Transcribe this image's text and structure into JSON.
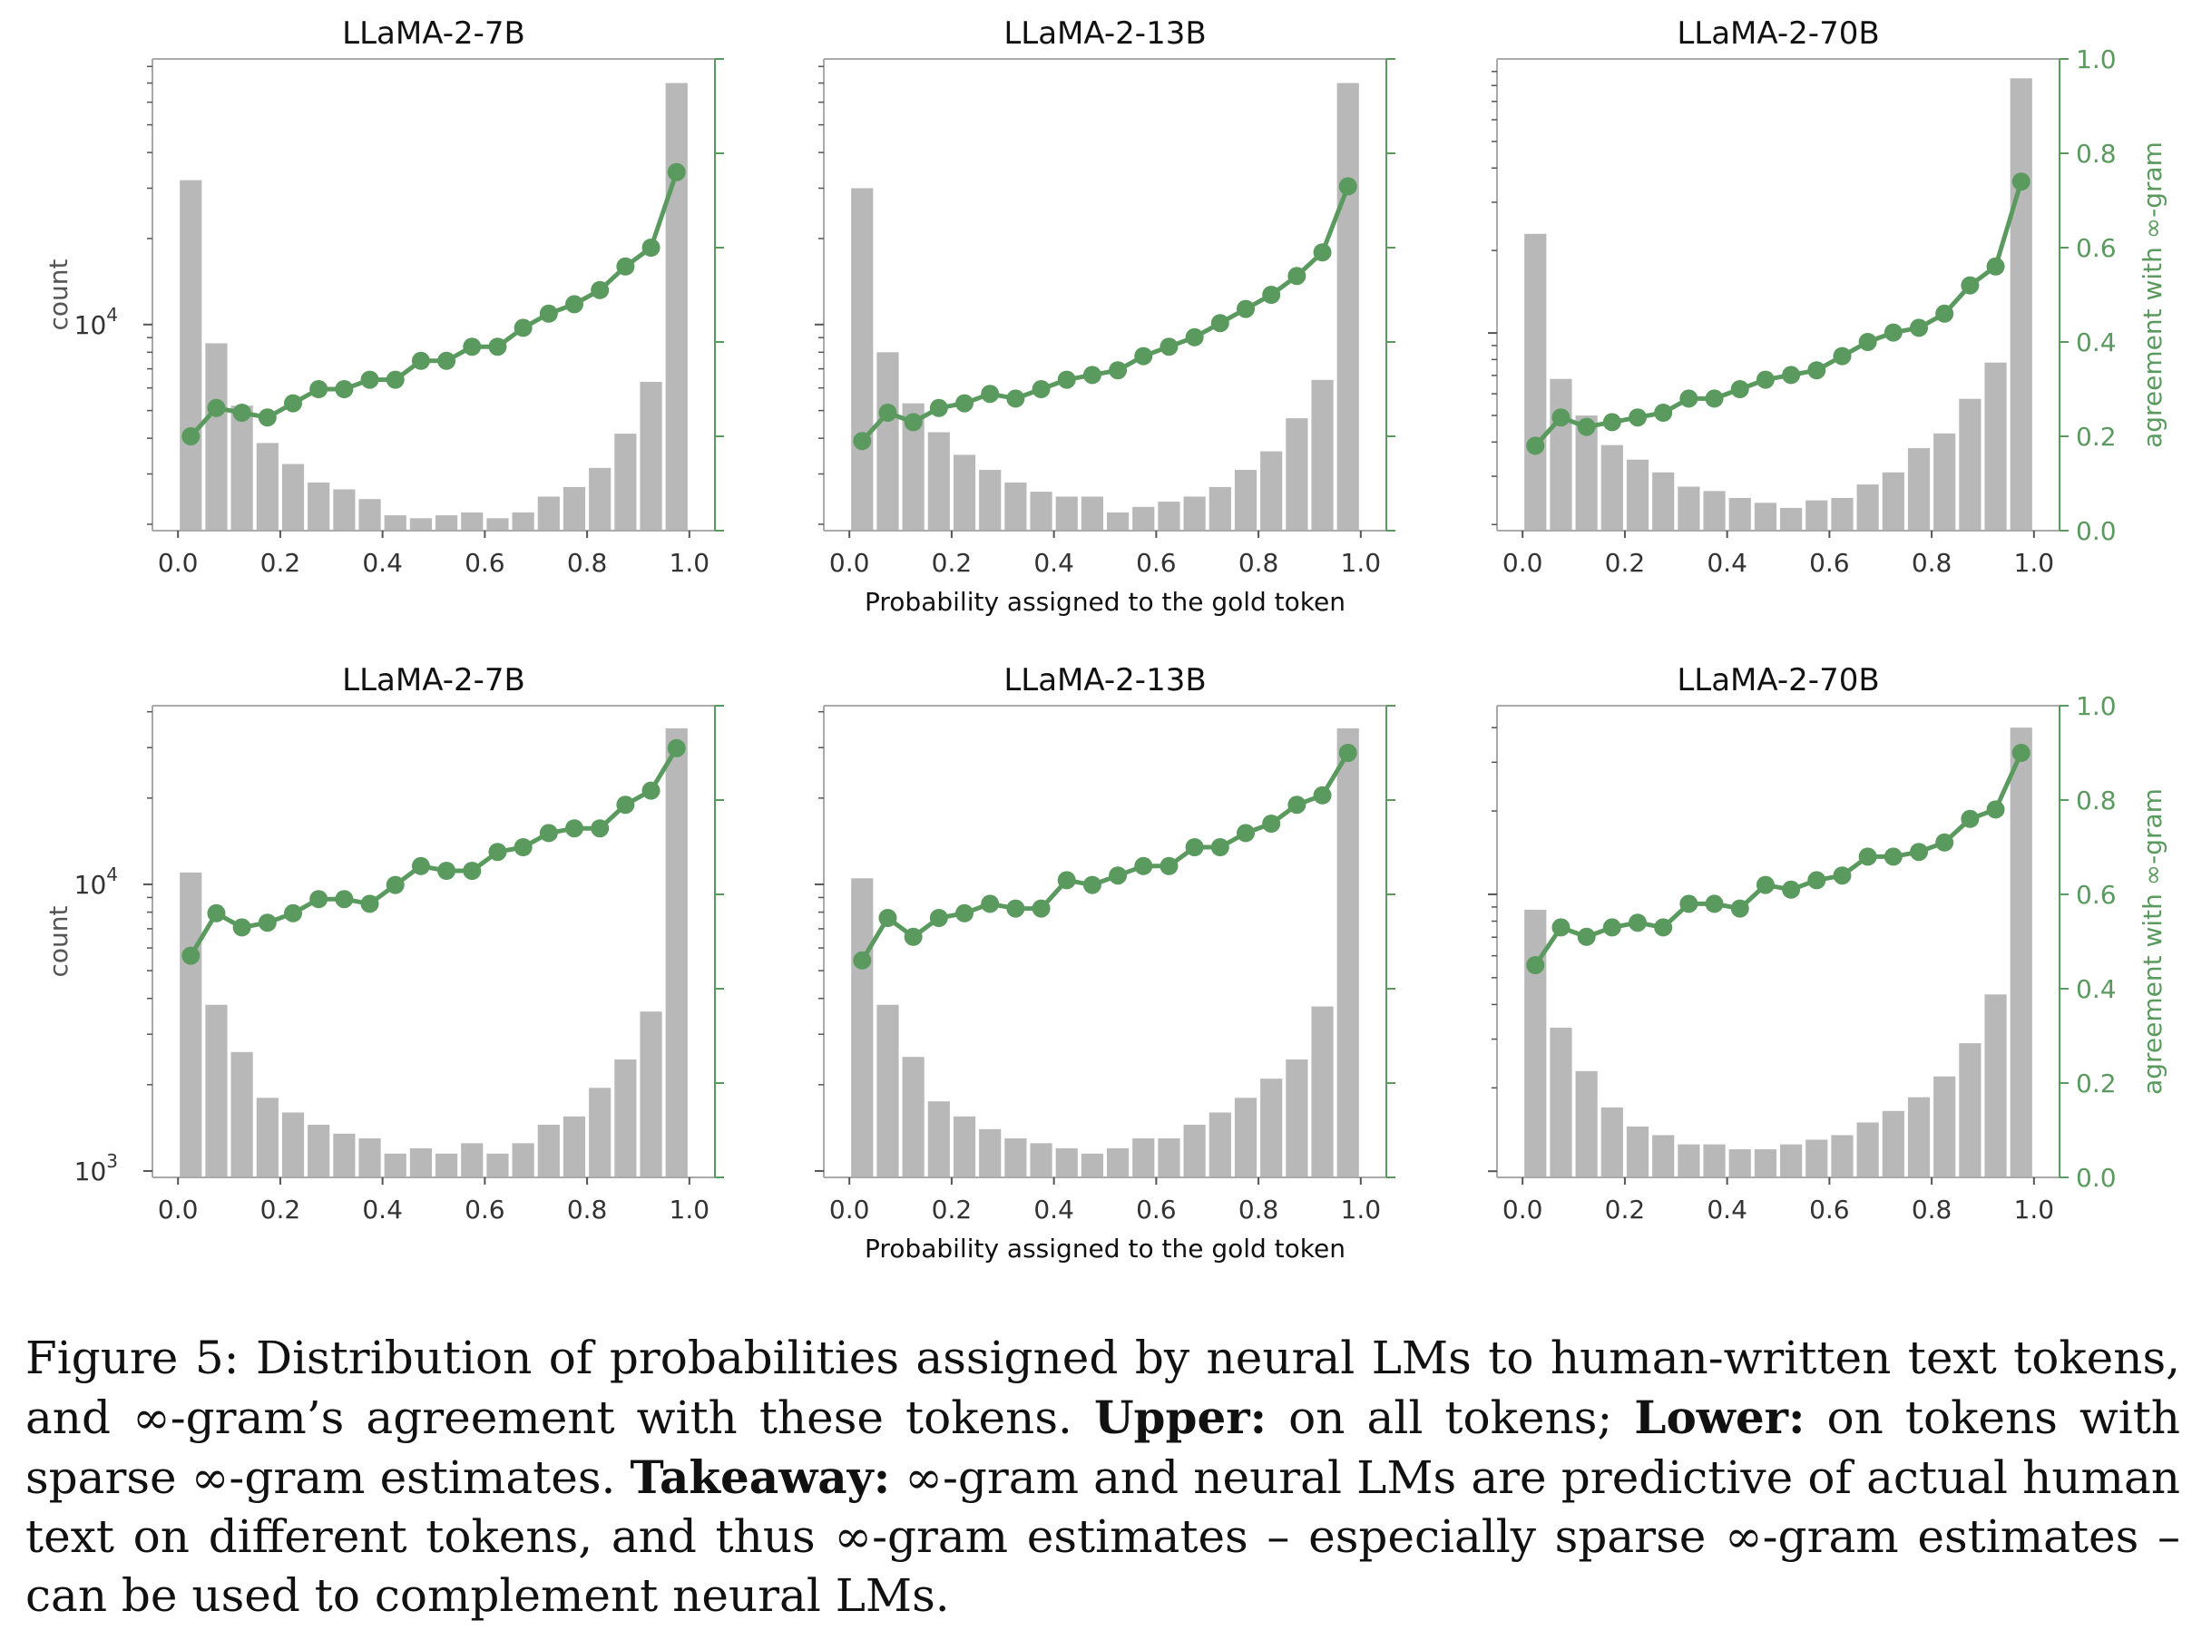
{
  "figure": {
    "xlabel": "Probability assigned to the gold token",
    "ylabel_left": "count",
    "ylabel_right": "agreement with ∞-gram",
    "x_ticks": [
      "0.0",
      "0.2",
      "0.4",
      "0.6",
      "0.8",
      "1.0"
    ],
    "right_ticks": [
      "0.0",
      "0.2",
      "0.4",
      "0.6",
      "0.8",
      "1.0"
    ],
    "colors": {
      "bars": "#b8b8b8",
      "line": "#5a9a5e",
      "axis": "#aaaaaa",
      "text": "#333333"
    }
  },
  "chart_data": [
    {
      "type": "bar+line",
      "row": "upper",
      "title": "LLaMA-2-7B",
      "bin_centers": [
        0.025,
        0.075,
        0.125,
        0.175,
        0.225,
        0.275,
        0.325,
        0.375,
        0.425,
        0.475,
        0.525,
        0.575,
        0.625,
        0.675,
        0.725,
        0.775,
        0.825,
        0.875,
        0.925,
        0.975
      ],
      "counts": [
        32000,
        8600,
        5200,
        3850,
        3250,
        2800,
        2650,
        2450,
        2150,
        2100,
        2150,
        2200,
        2100,
        2200,
        2500,
        2700,
        3150,
        4150,
        6300,
        70000
      ],
      "agreement": [
        0.2,
        0.26,
        0.25,
        0.24,
        0.27,
        0.3,
        0.3,
        0.32,
        0.32,
        0.36,
        0.36,
        0.39,
        0.39,
        0.43,
        0.46,
        0.48,
        0.51,
        0.56,
        0.6,
        0.76
      ],
      "ylim_log": [
        1900,
        85000
      ],
      "yticks_left": [
        {
          "value": 10000,
          "base": "10",
          "exp": "4"
        }
      ],
      "ylim_right": [
        0,
        1
      ]
    },
    {
      "type": "bar+line",
      "row": "upper",
      "title": "LLaMA-2-13B",
      "bin_centers": [
        0.025,
        0.075,
        0.125,
        0.175,
        0.225,
        0.275,
        0.325,
        0.375,
        0.425,
        0.475,
        0.525,
        0.575,
        0.625,
        0.675,
        0.725,
        0.775,
        0.825,
        0.875,
        0.925,
        0.975
      ],
      "counts": [
        30000,
        8000,
        5300,
        4200,
        3500,
        3100,
        2800,
        2600,
        2500,
        2500,
        2200,
        2300,
        2400,
        2500,
        2700,
        3100,
        3600,
        4700,
        6400,
        70000
      ],
      "agreement": [
        0.19,
        0.25,
        0.23,
        0.26,
        0.27,
        0.29,
        0.28,
        0.3,
        0.32,
        0.33,
        0.34,
        0.37,
        0.39,
        0.41,
        0.44,
        0.47,
        0.5,
        0.54,
        0.59,
        0.73
      ],
      "ylim_log": [
        1900,
        85000
      ],
      "yticks_left": [
        {
          "value": 10000
        }
      ],
      "ylim_right": [
        0,
        1
      ]
    },
    {
      "type": "bar+line",
      "row": "upper",
      "title": "LLaMA-2-70B",
      "bin_centers": [
        0.025,
        0.075,
        0.125,
        0.175,
        0.225,
        0.275,
        0.325,
        0.375,
        0.425,
        0.475,
        0.525,
        0.575,
        0.625,
        0.675,
        0.725,
        0.775,
        0.825,
        0.875,
        0.925,
        0.975
      ],
      "counts": [
        23000,
        6800,
        5000,
        3900,
        3450,
        3100,
        2750,
        2650,
        2500,
        2400,
        2300,
        2450,
        2500,
        2800,
        3100,
        3800,
        4300,
        5750,
        7800,
        85000
      ],
      "agreement": [
        0.18,
        0.24,
        0.22,
        0.23,
        0.24,
        0.25,
        0.28,
        0.28,
        0.3,
        0.32,
        0.33,
        0.34,
        0.37,
        0.4,
        0.42,
        0.43,
        0.46,
        0.52,
        0.56,
        0.74
      ],
      "ylim_log": [
        1900,
        100000
      ],
      "yticks_left": [
        {
          "value": 10000
        }
      ],
      "ylim_right": [
        0,
        1
      ]
    },
    {
      "type": "bar+line",
      "row": "lower",
      "title": "LLaMA-2-7B",
      "bin_centers": [
        0.025,
        0.075,
        0.125,
        0.175,
        0.225,
        0.275,
        0.325,
        0.375,
        0.425,
        0.475,
        0.525,
        0.575,
        0.625,
        0.675,
        0.725,
        0.775,
        0.825,
        0.875,
        0.925,
        0.975
      ],
      "counts": [
        11000,
        3800,
        2600,
        1800,
        1600,
        1450,
        1350,
        1300,
        1150,
        1200,
        1150,
        1250,
        1150,
        1250,
        1450,
        1550,
        1950,
        2450,
        3600,
        35000
      ],
      "agreement": [
        0.47,
        0.56,
        0.53,
        0.54,
        0.56,
        0.59,
        0.59,
        0.58,
        0.62,
        0.66,
        0.65,
        0.65,
        0.69,
        0.7,
        0.73,
        0.74,
        0.74,
        0.79,
        0.82,
        0.91
      ],
      "ylim_log": [
        950,
        42000
      ],
      "yticks_left": [
        {
          "value": 10000,
          "base": "10",
          "exp": "4"
        },
        {
          "value": 1000,
          "base": "10",
          "exp": "3"
        }
      ],
      "ylim_right": [
        0,
        1
      ]
    },
    {
      "type": "bar+line",
      "row": "lower",
      "title": "LLaMA-2-13B",
      "bin_centers": [
        0.025,
        0.075,
        0.125,
        0.175,
        0.225,
        0.275,
        0.325,
        0.375,
        0.425,
        0.475,
        0.525,
        0.575,
        0.625,
        0.675,
        0.725,
        0.775,
        0.825,
        0.875,
        0.925,
        0.975
      ],
      "counts": [
        10500,
        3800,
        2500,
        1750,
        1550,
        1400,
        1300,
        1250,
        1200,
        1150,
        1200,
        1300,
        1300,
        1450,
        1600,
        1800,
        2100,
        2450,
        3750,
        35000
      ],
      "agreement": [
        0.46,
        0.55,
        0.51,
        0.55,
        0.56,
        0.58,
        0.57,
        0.57,
        0.63,
        0.62,
        0.64,
        0.66,
        0.66,
        0.7,
        0.7,
        0.73,
        0.75,
        0.79,
        0.81,
        0.9
      ],
      "ylim_log": [
        950,
        42000
      ],
      "yticks_left": [
        {
          "value": 10000
        },
        {
          "value": 1000
        }
      ],
      "ylim_right": [
        0,
        1
      ]
    },
    {
      "type": "bar+line",
      "row": "lower",
      "title": "LLaMA-2-70B",
      "bin_centers": [
        0.025,
        0.075,
        0.125,
        0.175,
        0.225,
        0.275,
        0.325,
        0.375,
        0.425,
        0.475,
        0.525,
        0.575,
        0.625,
        0.675,
        0.725,
        0.775,
        0.825,
        0.875,
        0.925,
        0.975
      ],
      "counts": [
        8800,
        3300,
        2300,
        1700,
        1450,
        1350,
        1250,
        1250,
        1200,
        1200,
        1250,
        1300,
        1350,
        1500,
        1650,
        1850,
        2200,
        2900,
        4350,
        40000
      ],
      "agreement": [
        0.45,
        0.53,
        0.51,
        0.53,
        0.54,
        0.53,
        0.58,
        0.58,
        0.57,
        0.62,
        0.61,
        0.63,
        0.64,
        0.68,
        0.68,
        0.69,
        0.71,
        0.76,
        0.78,
        0.9
      ],
      "ylim_log": [
        950,
        48000
      ],
      "yticks_left": [
        {
          "value": 10000
        },
        {
          "value": 1000
        }
      ],
      "ylim_right": [
        0,
        1
      ]
    }
  ],
  "caption": {
    "label": "Figure 5:",
    "p1": " Distribution of probabilities assigned by neural LMs to human-written text tokens, and ∞-gram’s agreement with these tokens. ",
    "upper_label": "Upper:",
    "p2": " on all tokens; ",
    "lower_label": "Lower:",
    "p3": " on tokens with sparse ∞-gram estimates. ",
    "takeaway_label": "Takeaway:",
    "p4": " ∞-gram and neural LMs are predictive of actual human text on different tokens, and thus ∞-gram estimates – especially sparse ∞-gram estimates – can be used to complement neural LMs."
  }
}
